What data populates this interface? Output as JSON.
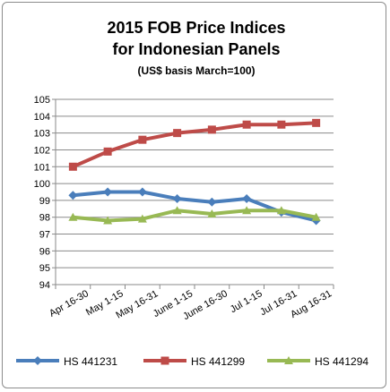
{
  "chart_data": {
    "type": "line",
    "title": "2015 FOB Price Indices",
    "title_line2": "for Indonesian Panels",
    "subtitle": "(US$ basis March=100)",
    "categories": [
      "Apr 16-30",
      "May 1-15",
      "May 16-31",
      "June 1-15",
      "June 16-30",
      "Jul 1-15",
      "Jul 16-31",
      "Aug 16-31"
    ],
    "ylim": [
      94,
      105
    ],
    "yticks": [
      "94",
      "95",
      "96",
      "97",
      "98",
      "99",
      "100",
      "101",
      "102",
      "103",
      "104",
      "105"
    ],
    "grid": "horizontal",
    "legend_position": "bottom",
    "series": [
      {
        "name": "HS 441231",
        "color": "#4a7ebb",
        "marker": "diamond",
        "values": [
          99.3,
          99.5,
          99.5,
          99.1,
          98.9,
          99.1,
          98.3,
          97.8
        ]
      },
      {
        "name": "HS 441299",
        "color": "#be4b48",
        "marker": "square",
        "values": [
          101.0,
          101.9,
          102.6,
          103.0,
          103.2,
          103.5,
          103.5,
          103.6
        ]
      },
      {
        "name": "HS 441294",
        "color": "#98b954",
        "marker": "triangle",
        "values": [
          98.0,
          97.8,
          97.9,
          98.4,
          98.2,
          98.4,
          98.4,
          98.0
        ]
      }
    ]
  }
}
